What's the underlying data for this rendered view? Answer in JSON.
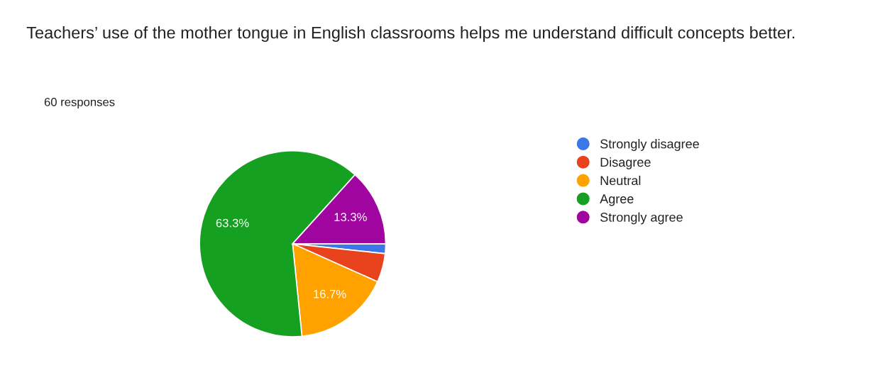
{
  "chart_data": {
    "type": "pie",
    "title": "Teachers’ use of the mother tongue in English classrooms helps me understand difficult concepts better.",
    "subtitle": "60 responses",
    "categories": [
      "Strongly disagree",
      "Disagree",
      "Neutral",
      "Agree",
      "Strongly agree"
    ],
    "values": [
      1.7,
      5,
      16.7,
      63.3,
      13.3
    ],
    "colors": [
      "#3b78e7",
      "#e8431d",
      "#ffa200",
      "#16a022",
      "#a0069f"
    ],
    "value_labels": [
      null,
      null,
      "16.7%",
      "63.3%",
      "13.3%"
    ],
    "legend": "right"
  }
}
